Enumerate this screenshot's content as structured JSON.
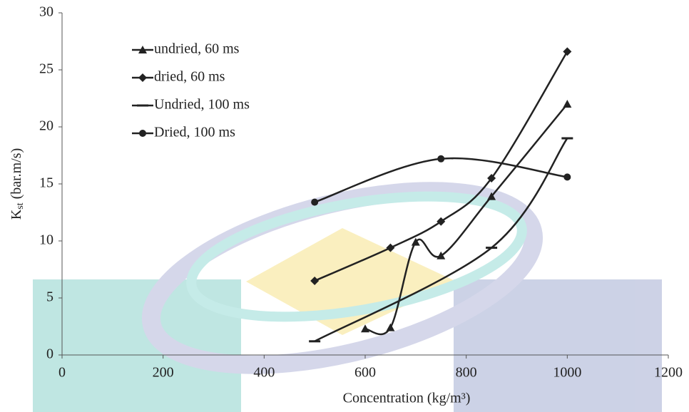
{
  "chart_data": {
    "type": "line",
    "x_label": "Concentration (kg/m³)",
    "y_label": {
      "main": "K",
      "sub": "st",
      "unit": " (bar.m/s)"
    },
    "xlim": [
      0,
      1200
    ],
    "xticks": [
      0,
      200,
      400,
      600,
      800,
      1000,
      1200
    ],
    "ylim": [
      0,
      30
    ],
    "yticks": [
      0,
      5,
      10,
      15,
      20,
      25,
      30
    ],
    "grid": false,
    "legend": "upper left",
    "smooth": true,
    "series": [
      {
        "name": "undried, 60 ms",
        "marker": "triangle",
        "color": "#222222",
        "x": [
          600,
          650,
          700,
          750,
          850,
          1000
        ],
        "values": [
          2.3,
          2.4,
          9.9,
          8.7,
          13.9,
          22.0
        ]
      },
      {
        "name": "dried, 60 ms",
        "marker": "diamond",
        "color": "#222222",
        "x": [
          500,
          650,
          750,
          850,
          1000
        ],
        "values": [
          6.5,
          9.4,
          11.7,
          15.5,
          26.6
        ]
      },
      {
        "name": "Undried, 100 ms",
        "marker": "dash",
        "color": "#222222",
        "x": [
          500,
          850,
          1000
        ],
        "values": [
          1.2,
          9.4,
          19.0
        ]
      },
      {
        "name": "Dried, 100 ms",
        "marker": "circle",
        "color": "#222222",
        "x": [
          500,
          750,
          1000
        ],
        "values": [
          13.4,
          17.2,
          15.6
        ]
      }
    ]
  }
}
